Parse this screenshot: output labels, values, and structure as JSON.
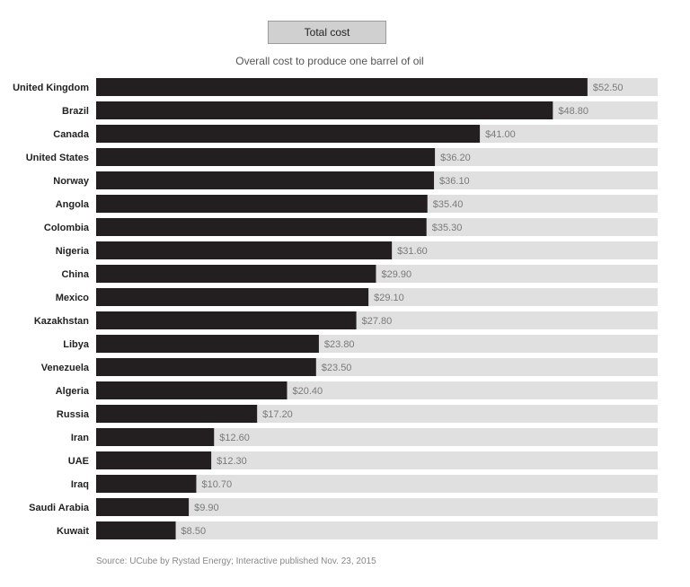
{
  "header": {
    "button_label": "Total cost",
    "subtitle": "Overall cost to produce one barrel of oil"
  },
  "chart_data": {
    "type": "bar",
    "orientation": "horizontal",
    "title": "",
    "subtitle": "Overall cost to produce one barrel of oil",
    "categories": [
      "United Kingdom",
      "Brazil",
      "Canada",
      "United States",
      "Norway",
      "Angola",
      "Colombia",
      "Nigeria",
      "China",
      "Mexico",
      "Kazakhstan",
      "Libya",
      "Venezuela",
      "Algeria",
      "Russia",
      "Iran",
      "UAE",
      "Iraq",
      "Saudi Arabia",
      "Kuwait"
    ],
    "values": [
      52.5,
      48.8,
      41.0,
      36.2,
      36.1,
      35.4,
      35.3,
      31.6,
      29.9,
      29.1,
      27.8,
      23.8,
      23.5,
      20.4,
      17.2,
      12.6,
      12.3,
      10.7,
      9.9,
      8.5
    ],
    "value_labels": [
      "$52.50",
      "$48.80",
      "$41.00",
      "$36.20",
      "$36.10",
      "$35.40",
      "$35.30",
      "$31.60",
      "$29.90",
      "$29.10",
      "$27.80",
      "$23.80",
      "$23.50",
      "$20.40",
      "$17.20",
      "$12.60",
      "$12.30",
      "$10.70",
      "$9.90",
      "$8.50"
    ],
    "xlim": [
      0,
      60
    ],
    "grid": false,
    "colors": {
      "bar": "#231f20",
      "track": "#e0e0e0"
    }
  },
  "footer": {
    "source": "Source: UCube by Rystad Energy; Interactive published Nov. 23, 2015"
  }
}
